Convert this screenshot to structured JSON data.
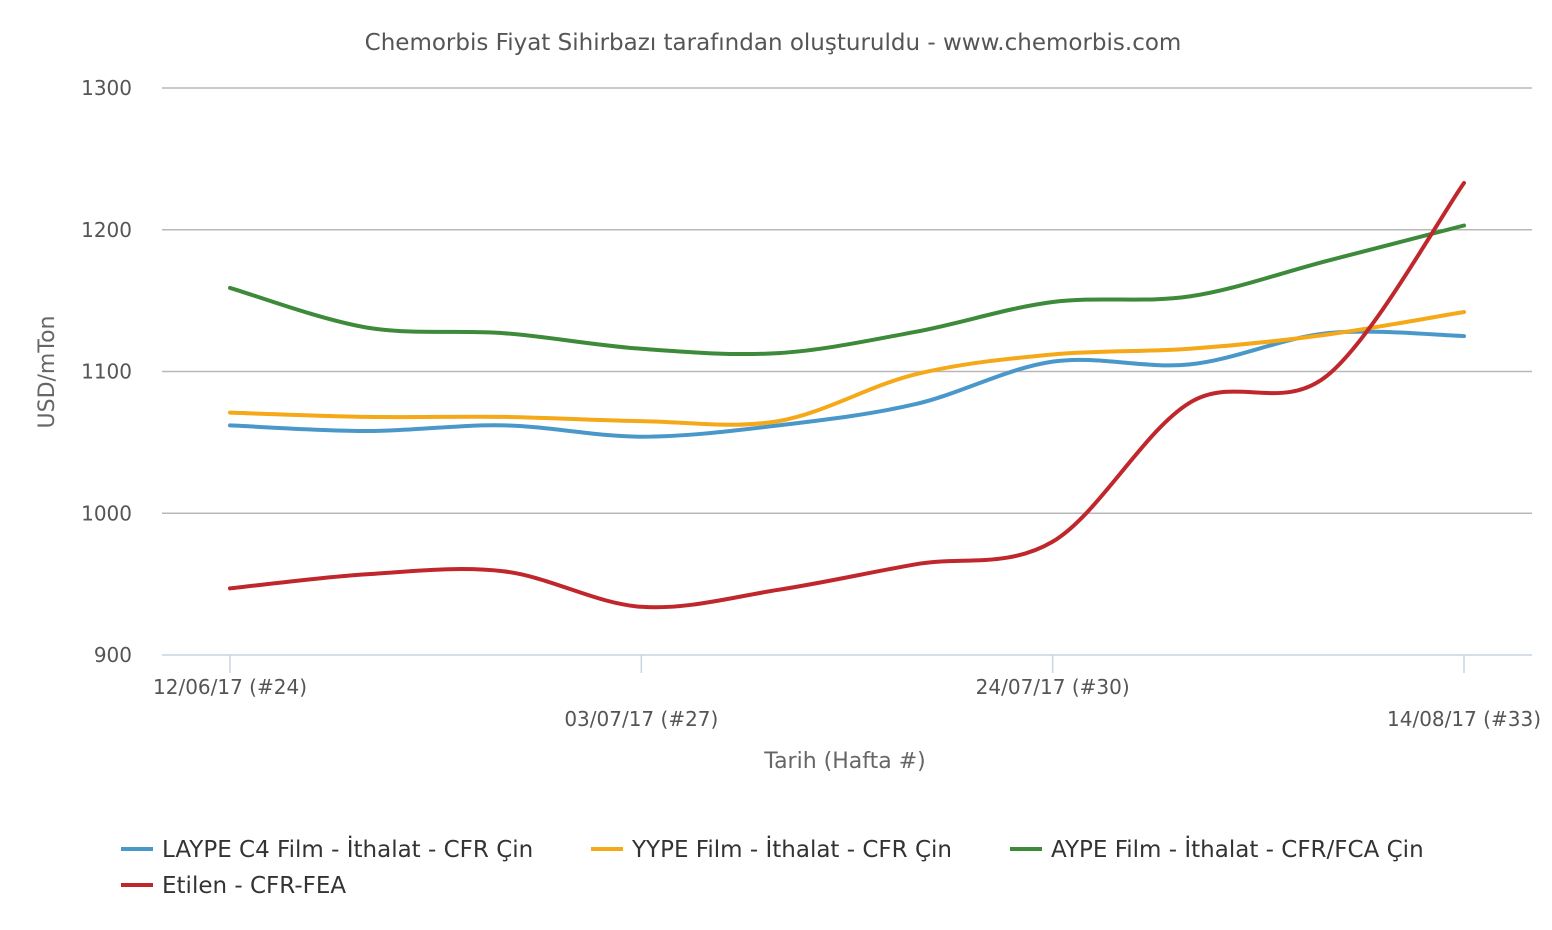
{
  "chart_data": {
    "type": "line",
    "title": "Chemorbis Fiyat Sihirbazı tarafından oluşturuldu - www.chemorbis.com",
    "xlabel": "Tarih (Hafta #)",
    "ylabel": "USD/mTon",
    "ylim": [
      900,
      1300
    ],
    "yticks": [
      900,
      1000,
      1100,
      1200,
      1300
    ],
    "grid": true,
    "legend_position": "bottom",
    "x_tick_labels": [
      "12/06/17 (#24)",
      "03/07/17 (#27)",
      "24/07/17 (#30)",
      "14/08/17 (#33)"
    ],
    "x": [
      24,
      25,
      26,
      27,
      28,
      29,
      30,
      31,
      32,
      33
    ],
    "series": [
      {
        "name": "LAYPE C4 Film - İthalat - CFR Çin",
        "color": "#4a98c9",
        "values": [
          1062,
          1058,
          1062,
          1054,
          1062,
          1077,
          1107,
          1105,
          1127,
          1125
        ]
      },
      {
        "name": "YYPE Film - İthalat - CFR Çin",
        "color": "#f5a818",
        "values": [
          1071,
          1068,
          1068,
          1065,
          1065,
          1098,
          1112,
          1116,
          1126,
          1142
        ]
      },
      {
        "name": "AYPE Film - İthalat - CFR/FCA Çin",
        "color": "#3c8a3a",
        "values": [
          1159,
          1131,
          1127,
          1116,
          1113,
          1128,
          1149,
          1153,
          1178,
          1203
        ]
      },
      {
        "name": "Etilen - CFR-FEA",
        "color": "#c0272d",
        "values": [
          947,
          957,
          959,
          934,
          946,
          964,
          980,
          1078,
          1097,
          1233
        ]
      }
    ]
  }
}
